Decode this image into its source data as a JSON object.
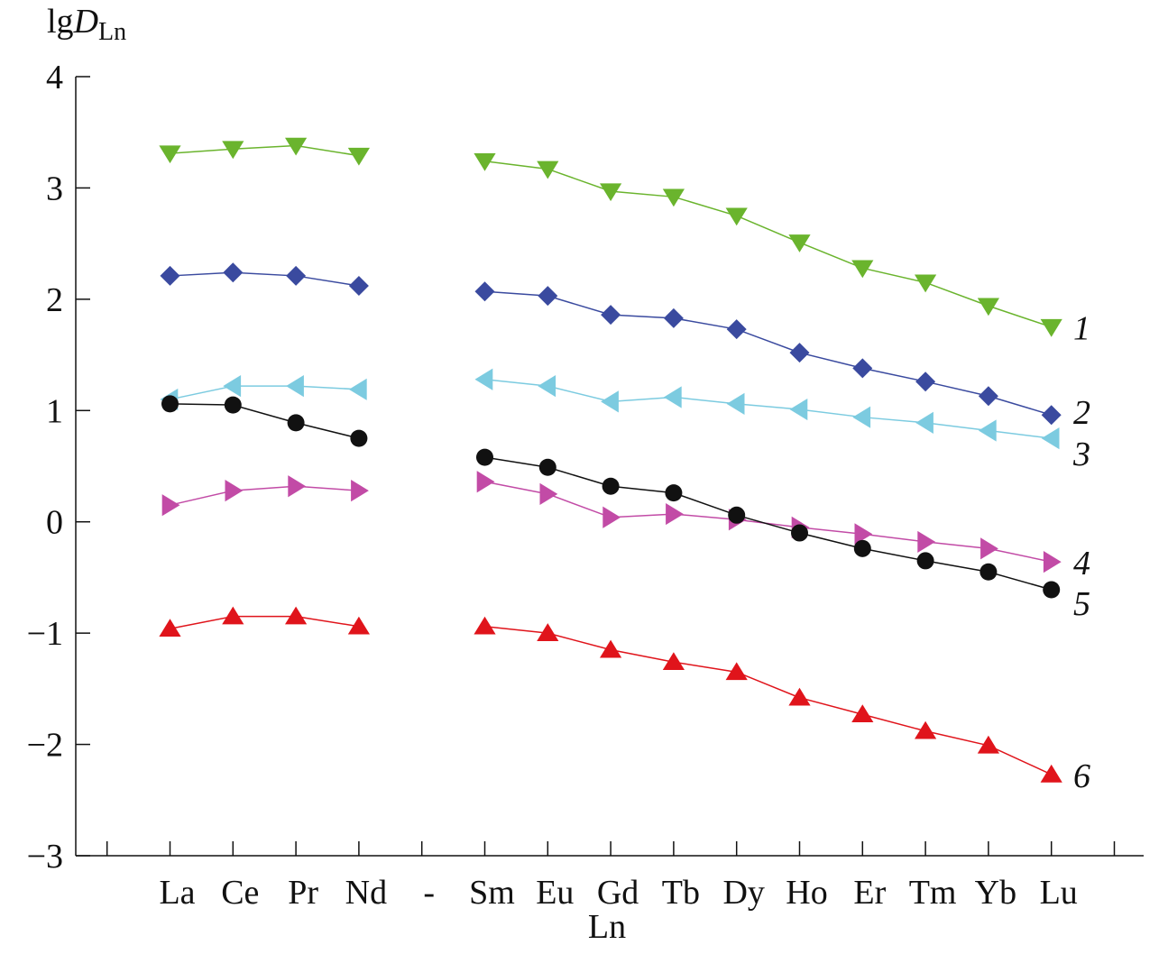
{
  "chart_data": {
    "type": "line",
    "ylabel_main": "lg",
    "ylabel_italic": "D",
    "ylabel_sub": "Ln",
    "xlabel": "Ln",
    "categories": [
      "La",
      "Ce",
      "Pr",
      "Nd",
      "-",
      "Sm",
      "Eu",
      "Gd",
      "Tb",
      "Dy",
      "Ho",
      "Er",
      "Tm",
      "Yb",
      "Lu"
    ],
    "ylim": [
      -3,
      4
    ],
    "yticks": [
      4,
      3,
      2,
      1,
      0,
      -1,
      -2,
      -3
    ],
    "ytick_labels": [
      "4",
      "3",
      "2",
      "1",
      "0",
      "−1",
      "−2",
      "−3"
    ],
    "grid": false,
    "legend": "inline labels at right end of series",
    "series": [
      {
        "name": "1",
        "color": "#6ab42d",
        "marker": "triangle-down",
        "values": [
          3.31,
          3.35,
          3.38,
          3.29,
          null,
          3.24,
          3.17,
          2.97,
          2.92,
          2.75,
          2.51,
          2.28,
          2.15,
          1.94,
          1.75
        ]
      },
      {
        "name": "2",
        "color": "#3a4a9f",
        "marker": "diamond",
        "values": [
          2.21,
          2.24,
          2.21,
          2.12,
          null,
          2.07,
          2.03,
          1.86,
          1.83,
          1.73,
          1.52,
          1.38,
          1.26,
          1.13,
          0.96
        ]
      },
      {
        "name": "3",
        "color": "#7ccbe0",
        "marker": "triangle-left",
        "values": [
          1.1,
          1.22,
          1.22,
          1.19,
          null,
          1.28,
          1.22,
          1.08,
          1.12,
          1.06,
          1.01,
          0.94,
          0.89,
          0.82,
          0.75
        ]
      },
      {
        "name": "4",
        "color": "#c24ba6",
        "marker": "triangle-right",
        "values": [
          0.15,
          0.28,
          0.32,
          0.28,
          null,
          0.36,
          0.25,
          0.04,
          0.07,
          0.02,
          -0.05,
          -0.11,
          -0.18,
          -0.24,
          -0.36
        ]
      },
      {
        "name": "5",
        "color": "#111111",
        "marker": "circle",
        "values": [
          1.06,
          1.05,
          0.89,
          0.75,
          null,
          0.58,
          0.49,
          0.32,
          0.26,
          0.06,
          -0.1,
          -0.24,
          -0.35,
          -0.45,
          -0.61
        ]
      },
      {
        "name": "6",
        "color": "#e0141b",
        "marker": "triangle-up",
        "values": [
          -0.96,
          -0.85,
          -0.85,
          -0.94,
          null,
          -0.94,
          -1.0,
          -1.15,
          -1.26,
          -1.35,
          -1.58,
          -1.73,
          -1.88,
          -2.01,
          -2.27
        ]
      }
    ]
  }
}
